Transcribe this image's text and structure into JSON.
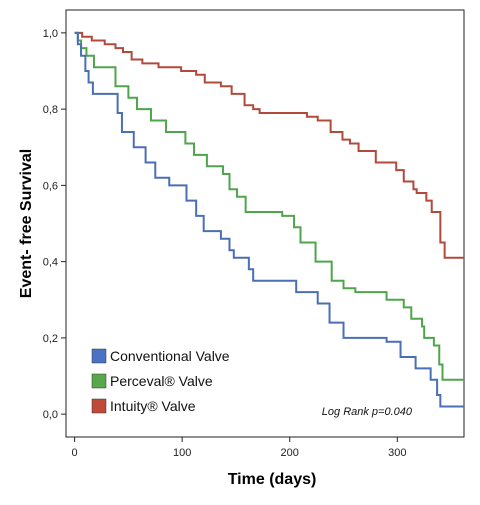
{
  "chart_data": {
    "type": "line",
    "subtype": "step",
    "title": "",
    "xlabel": "Time (days)",
    "ylabel": "Event- free Survival",
    "xlim": [
      -8,
      362
    ],
    "ylim": [
      -0.06,
      1.06
    ],
    "x_ticks": [
      {
        "value": 0,
        "label": "0"
      },
      {
        "value": 100,
        "label": "100"
      },
      {
        "value": 200,
        "label": "200"
      },
      {
        "value": 300,
        "label": "300"
      }
    ],
    "y_ticks": [
      {
        "value": 0.0,
        "label": "0,0"
      },
      {
        "value": 0.2,
        "label": "0,2"
      },
      {
        "value": 0.4,
        "label": "0,4"
      },
      {
        "value": 0.6,
        "label": "0,6"
      },
      {
        "value": 0.8,
        "label": "0,8"
      },
      {
        "value": 1.0,
        "label": "1,0"
      }
    ],
    "grid": false,
    "legend_position": "bottom-left",
    "annotation": "Log Rank p=0.040",
    "series": [
      {
        "name": "Conventional Valve",
        "color": "#4a6fb5",
        "legend_color": "#4a72c4",
        "points": [
          [
            0,
            1.0
          ],
          [
            3,
            0.97
          ],
          [
            6,
            0.94
          ],
          [
            10,
            0.9
          ],
          [
            13,
            0.87
          ],
          [
            17,
            0.84
          ],
          [
            40,
            0.79
          ],
          [
            44,
            0.74
          ],
          [
            55,
            0.7
          ],
          [
            66,
            0.66
          ],
          [
            75,
            0.62
          ],
          [
            88,
            0.6
          ],
          [
            104,
            0.56
          ],
          [
            113,
            0.52
          ],
          [
            120,
            0.48
          ],
          [
            136,
            0.46
          ],
          [
            144,
            0.43
          ],
          [
            148,
            0.41
          ],
          [
            162,
            0.38
          ],
          [
            166,
            0.35
          ],
          [
            206,
            0.32
          ],
          [
            226,
            0.29
          ],
          [
            237,
            0.24
          ],
          [
            250,
            0.2
          ],
          [
            290,
            0.19
          ],
          [
            303,
            0.15
          ],
          [
            317,
            0.12
          ],
          [
            331,
            0.09
          ],
          [
            337,
            0.05
          ],
          [
            340,
            0.02
          ],
          [
            362,
            0.02
          ]
        ]
      },
      {
        "name": "Perceval® Valve",
        "color": "#4fa54b",
        "legend_color": "#56a84b",
        "points": [
          [
            0,
            1.0
          ],
          [
            3,
            0.98
          ],
          [
            6,
            0.96
          ],
          [
            11,
            0.94
          ],
          [
            18,
            0.91
          ],
          [
            38,
            0.86
          ],
          [
            50,
            0.83
          ],
          [
            58,
            0.8
          ],
          [
            71,
            0.77
          ],
          [
            85,
            0.74
          ],
          [
            103,
            0.71
          ],
          [
            111,
            0.68
          ],
          [
            123,
            0.65
          ],
          [
            138,
            0.63
          ],
          [
            144,
            0.59
          ],
          [
            151,
            0.57
          ],
          [
            159,
            0.53
          ],
          [
            193,
            0.52
          ],
          [
            204,
            0.49
          ],
          [
            210,
            0.45
          ],
          [
            224,
            0.4
          ],
          [
            239,
            0.35
          ],
          [
            250,
            0.33
          ],
          [
            261,
            0.32
          ],
          [
            290,
            0.3
          ],
          [
            306,
            0.28
          ],
          [
            313,
            0.25
          ],
          [
            323,
            0.23
          ],
          [
            325,
            0.2
          ],
          [
            334,
            0.18
          ],
          [
            339,
            0.13
          ],
          [
            342,
            0.09
          ],
          [
            362,
            0.09
          ]
        ]
      },
      {
        "name": "Intuity® Valve",
        "color": "#b24a3c",
        "legend_color": "#c04a3a",
        "points": [
          [
            0,
            1.0
          ],
          [
            7,
            0.99
          ],
          [
            16,
            0.98
          ],
          [
            28,
            0.97
          ],
          [
            38,
            0.96
          ],
          [
            45,
            0.95
          ],
          [
            53,
            0.93
          ],
          [
            63,
            0.92
          ],
          [
            78,
            0.91
          ],
          [
            99,
            0.9
          ],
          [
            113,
            0.89
          ],
          [
            121,
            0.87
          ],
          [
            136,
            0.86
          ],
          [
            146,
            0.84
          ],
          [
            158,
            0.81
          ],
          [
            166,
            0.8
          ],
          [
            172,
            0.79
          ],
          [
            195,
            0.79
          ],
          [
            216,
            0.78
          ],
          [
            226,
            0.77
          ],
          [
            238,
            0.74
          ],
          [
            249,
            0.72
          ],
          [
            256,
            0.71
          ],
          [
            264,
            0.69
          ],
          [
            280,
            0.66
          ],
          [
            299,
            0.64
          ],
          [
            306,
            0.61
          ],
          [
            315,
            0.59
          ],
          [
            318,
            0.58
          ],
          [
            327,
            0.56
          ],
          [
            332,
            0.53
          ],
          [
            340,
            0.45
          ],
          [
            344,
            0.41
          ],
          [
            362,
            0.41
          ]
        ]
      }
    ]
  }
}
